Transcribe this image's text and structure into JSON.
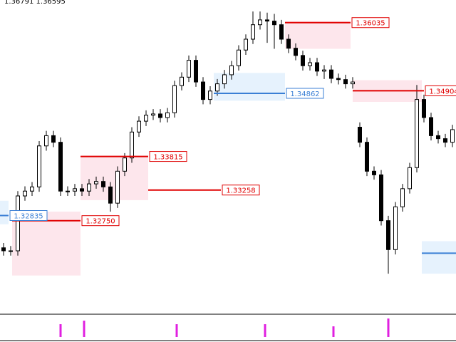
{
  "chart_data": {
    "type": "candlestick",
    "header": "1.36791 1.36595",
    "xlim": [
      0,
      64
    ],
    "ylim": [
      1.3121,
      1.3641
    ],
    "bull_color": "#ffffff",
    "bear_color": "#000000",
    "wick_color": "#000000",
    "ohlc": [
      [
        1.323,
        1.3238,
        1.3217,
        1.3225
      ],
      [
        1.3225,
        1.3233,
        1.3217,
        1.3225
      ],
      [
        1.3225,
        1.3324,
        1.3217,
        1.3316
      ],
      [
        1.3316,
        1.3332,
        1.3308,
        1.3324
      ],
      [
        1.3324,
        1.3339,
        1.3316,
        1.3331
      ],
      [
        1.3331,
        1.3407,
        1.3323,
        1.3399
      ],
      [
        1.3399,
        1.3424,
        1.3391,
        1.3416
      ],
      [
        1.3416,
        1.3424,
        1.3397,
        1.3405
      ],
      [
        1.3405,
        1.3413,
        1.3316,
        1.3324
      ],
      [
        1.3324,
        1.3332,
        1.3316,
        1.3324
      ],
      [
        1.3324,
        1.3336,
        1.3316,
        1.3328
      ],
      [
        1.3328,
        1.3336,
        1.3316,
        1.3324
      ],
      [
        1.3324,
        1.3344,
        1.3316,
        1.3336
      ],
      [
        1.3336,
        1.3348,
        1.3328,
        1.334
      ],
      [
        1.334,
        1.3348,
        1.3323,
        1.3331
      ],
      [
        1.3331,
        1.3339,
        1.329,
        1.3304
      ],
      [
        1.3304,
        1.3365,
        1.3296,
        1.3357
      ],
      [
        1.3357,
        1.3387,
        1.3349,
        1.3379
      ],
      [
        1.3379,
        1.343,
        1.3371,
        1.3422
      ],
      [
        1.3422,
        1.3448,
        1.3414,
        1.344
      ],
      [
        1.344,
        1.3458,
        1.3432,
        1.345
      ],
      [
        1.345,
        1.346,
        1.3442,
        1.3452
      ],
      [
        1.3452,
        1.346,
        1.3438,
        1.3446
      ],
      [
        1.3446,
        1.3462,
        1.3438,
        1.3454
      ],
      [
        1.3454,
        1.3507,
        1.3446,
        1.3499
      ],
      [
        1.3499,
        1.3521,
        1.3491,
        1.3513
      ],
      [
        1.3513,
        1.3549,
        1.3505,
        1.3541
      ],
      [
        1.3541,
        1.3549,
        1.3497,
        1.3505
      ],
      [
        1.3505,
        1.3513,
        1.3468,
        1.3476
      ],
      [
        1.3476,
        1.3498,
        1.3468,
        1.349
      ],
      [
        1.349,
        1.351,
        1.3482,
        1.3502
      ],
      [
        1.3502,
        1.3525,
        1.3494,
        1.3517
      ],
      [
        1.3517,
        1.354,
        1.3509,
        1.3532
      ],
      [
        1.3532,
        1.3566,
        1.3524,
        1.3558
      ],
      [
        1.3558,
        1.3584,
        1.355,
        1.3576
      ],
      [
        1.3576,
        1.3622,
        1.3568,
        1.36
      ],
      [
        1.36,
        1.3622,
        1.3592,
        1.3608
      ],
      [
        1.3608,
        1.362,
        1.357,
        1.3606
      ],
      [
        1.3606,
        1.3618,
        1.356,
        1.36
      ],
      [
        1.36,
        1.3608,
        1.3568,
        1.3576
      ],
      [
        1.3576,
        1.3584,
        1.3553,
        1.3561
      ],
      [
        1.3561,
        1.3569,
        1.3541,
        1.3549
      ],
      [
        1.3549,
        1.3557,
        1.3524,
        1.3532
      ],
      [
        1.3532,
        1.3545,
        1.3524,
        1.3537
      ],
      [
        1.3537,
        1.3545,
        1.3515,
        1.3523
      ],
      [
        1.3523,
        1.3533,
        1.351,
        1.3525
      ],
      [
        1.3525,
        1.3533,
        1.3503,
        1.3511
      ],
      [
        1.3511,
        1.3519,
        1.3501,
        1.3509
      ],
      [
        1.3509,
        1.3517,
        1.3494,
        1.3502
      ],
      [
        1.3502,
        1.3513,
        1.3494,
        1.3505
      ],
      [
        1.343,
        1.3438,
        1.3397,
        1.3405
      ],
      [
        1.3405,
        1.3413,
        1.3349,
        1.3357
      ],
      [
        1.3357,
        1.3365,
        1.3343,
        1.3351
      ],
      [
        1.3351,
        1.3359,
        1.3267,
        1.3275
      ],
      [
        1.3275,
        1.3283,
        1.3187,
        1.3227
      ],
      [
        1.3227,
        1.3306,
        1.3219,
        1.3298
      ],
      [
        1.3298,
        1.3336,
        1.329,
        1.3328
      ],
      [
        1.3328,
        1.3371,
        1.332,
        1.3363
      ],
      [
        1.3363,
        1.35,
        1.3355,
        1.3476
      ],
      [
        1.3476,
        1.3484,
        1.3438,
        1.3446
      ],
      [
        1.3446,
        1.3454,
        1.3408,
        1.3416
      ],
      [
        1.3416,
        1.3424,
        1.3403,
        1.3411
      ],
      [
        1.3411,
        1.3419,
        1.3397,
        1.3405
      ],
      [
        1.3405,
        1.3434,
        1.3397,
        1.3426
      ]
    ],
    "zones": [
      {
        "x": [
          0,
          1.2
        ],
        "range": [
          1.3269,
          1.3308
        ],
        "color": "#e6f2fd"
      },
      {
        "x": [
          1.7,
          11.3
        ],
        "range": [
          1.3184,
          1.329
        ],
        "color": "#fde6ec"
      },
      {
        "x": [
          11.3,
          20.8
        ],
        "range": [
          1.3309,
          1.3382
        ],
        "color": "#fde6ec"
      },
      {
        "x": [
          40,
          49.2
        ],
        "range": [
          1.356,
          1.3606
        ],
        "color": "#fde6ec"
      },
      {
        "x": [
          30,
          40
        ],
        "range": [
          1.3474,
          1.352
        ],
        "color": "#e6f2fd"
      },
      {
        "x": [
          49.5,
          59.2
        ],
        "range": [
          1.3472,
          1.3508
        ],
        "color": "#fde6ec"
      },
      {
        "x": [
          59.2,
          64
        ],
        "range": [
          1.3187,
          1.3241
        ],
        "color": "#e6f2fd"
      }
    ],
    "levels": [
      {
        "x": [
          1.7,
          11.3
        ],
        "value": 1.3275,
        "label": "1.32750",
        "color": "#e00000"
      },
      {
        "x": [
          11.3,
          20.8
        ],
        "value": 1.33815,
        "label": "1.33815",
        "color": "#e00000"
      },
      {
        "x": [
          20.8,
          31
        ],
        "value": 1.33258,
        "label": "1.33258",
        "color": "#e00000"
      },
      {
        "x": [
          0,
          1.2
        ],
        "value": 1.32835,
        "label": "1.32835",
        "color": "#3a7fd5"
      },
      {
        "x": [
          40,
          49.2
        ],
        "value": 1.36035,
        "label": "1.36035",
        "color": "#e00000"
      },
      {
        "x": [
          30,
          40
        ],
        "value": 1.34862,
        "label": "1.34862",
        "color": "#3a7fd5"
      },
      {
        "x": [
          49.5,
          59.5
        ],
        "value": 1.34904,
        "label": "1.34904",
        "color": "#e00000"
      },
      {
        "x": [
          59.2,
          64
        ],
        "value": 1.3221,
        "color": "#3a7fd5"
      }
    ],
    "signals": {
      "color": "#e020e0",
      "ylim": [
        0,
        30
      ],
      "x": [
        8.5,
        11.8,
        24.8,
        37.2,
        46.8,
        54.5
      ],
      "values": [
        18,
        23,
        18,
        18,
        15,
        26
      ]
    }
  }
}
